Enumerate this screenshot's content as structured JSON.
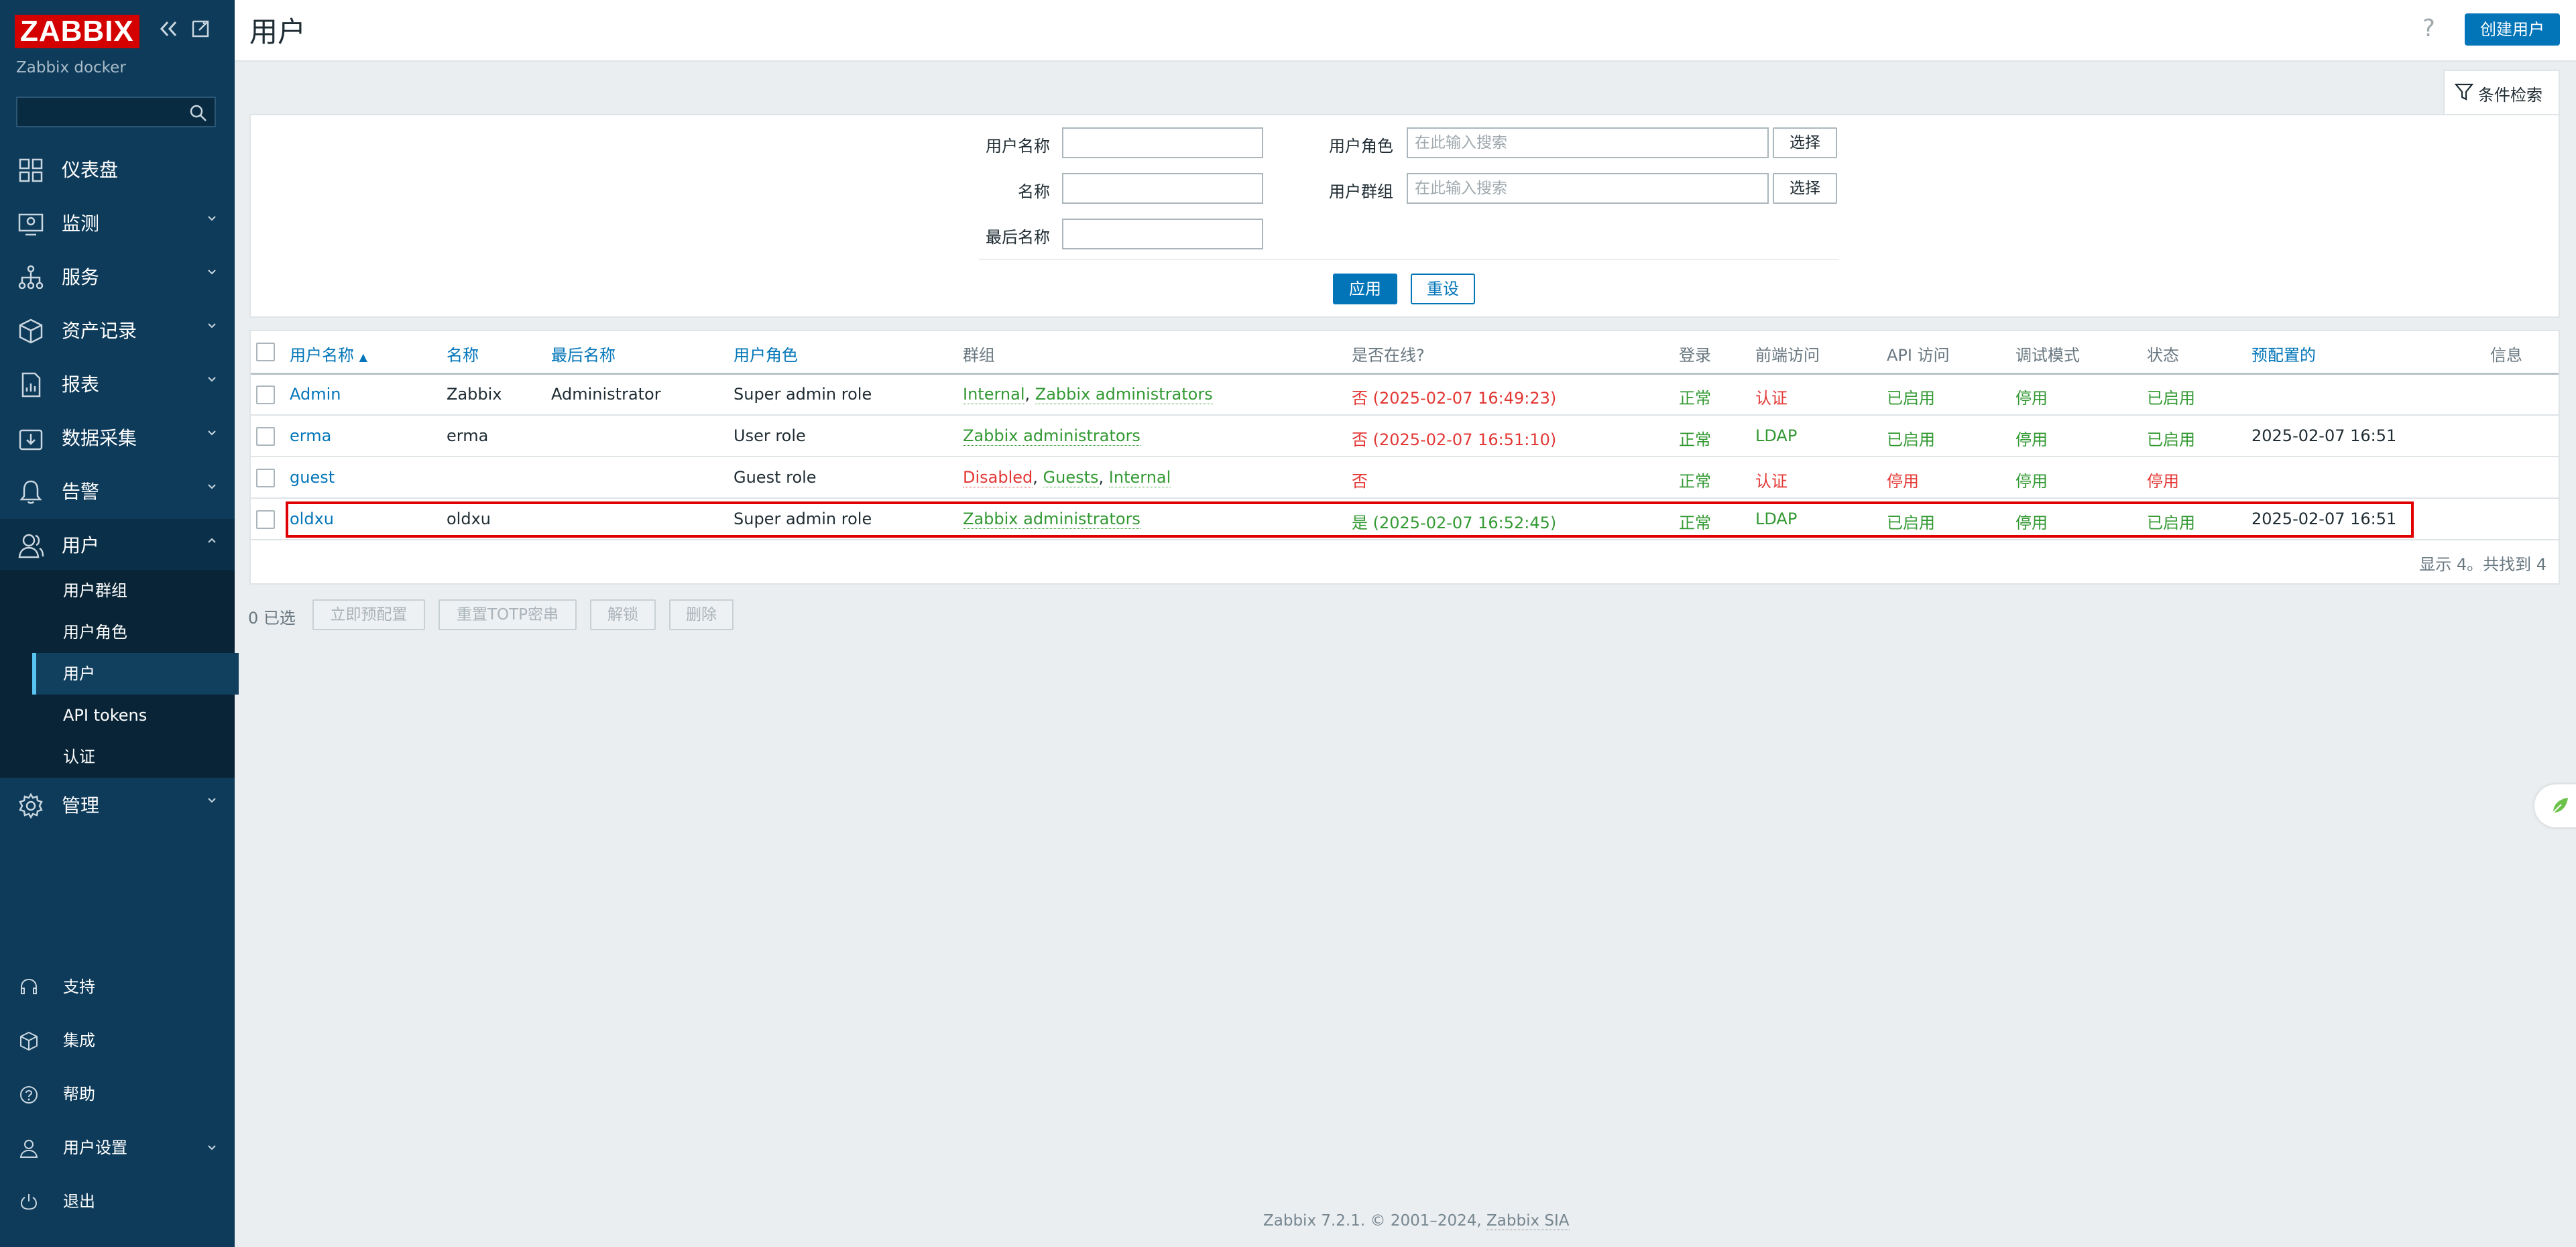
{
  "sidebar": {
    "logo": "ZABBIX",
    "instance": "Zabbix docker",
    "search_placeholder": "",
    "menu": [
      {
        "label": "仪表盘",
        "icon": "dashboard-icon"
      },
      {
        "label": "监测",
        "icon": "monitoring-icon"
      },
      {
        "label": "服务",
        "icon": "services-icon"
      },
      {
        "label": "资产记录",
        "icon": "inventory-icon"
      },
      {
        "label": "报表",
        "icon": "reports-icon"
      },
      {
        "label": "数据采集",
        "icon": "data-collection-icon"
      },
      {
        "label": "告警",
        "icon": "alerts-icon"
      },
      {
        "label": "用户",
        "icon": "users-icon"
      },
      {
        "label": "管理",
        "icon": "administration-icon"
      }
    ],
    "users_submenu": [
      "用户群组",
      "用户角色",
      "用户",
      "API tokens",
      "认证"
    ],
    "bottom": [
      {
        "label": "支持",
        "icon": "support-icon"
      },
      {
        "label": "集成",
        "icon": "integrations-icon"
      },
      {
        "label": "帮助",
        "icon": "help-icon"
      },
      {
        "label": "用户设置",
        "icon": "user-settings-icon"
      },
      {
        "label": "退出",
        "icon": "logout-icon"
      }
    ]
  },
  "header": {
    "title": "用户",
    "help": "?",
    "create_button": "创建用户"
  },
  "filter": {
    "tab_label": "条件检索",
    "username_label": "用户名称",
    "username_value": "",
    "name_label": "名称",
    "name_value": "",
    "surname_label": "最后名称",
    "surname_value": "",
    "role_label": "用户角色",
    "role_placeholder": "在此输入搜索",
    "group_label": "用户群组",
    "group_placeholder": "在此输入搜索",
    "select_label": "选择",
    "apply": "应用",
    "reset": "重设"
  },
  "table": {
    "headers": {
      "username": "用户名称",
      "name": "名称",
      "surname": "最后名称",
      "role": "用户角色",
      "groups": "群组",
      "online": "是否在线?",
      "login": "登录",
      "frontend": "前端访问",
      "api": "API 访问",
      "debug": "调试模式",
      "status": "状态",
      "provisioned": "预配置的",
      "info": "信息"
    },
    "sort_arrow": "▲",
    "rows": [
      {
        "username": "Admin",
        "name": "Zabbix",
        "surname": "Administrator",
        "role": "Super admin role",
        "groups": [
          {
            "t": "Internal",
            "c": "green"
          },
          {
            "t": "Zabbix administrators",
            "c": "green"
          }
        ],
        "online": "否 (2025-02-07 16:49:23)",
        "online_color": "red",
        "login": "正常",
        "frontend": "认证",
        "frontend_color": "red",
        "api": "已启用",
        "api_color": "green",
        "debug": "停用",
        "status": "已启用",
        "status_color": "green",
        "provisioned": ""
      },
      {
        "username": "erma",
        "name": "erma",
        "surname": "",
        "role": "User role",
        "groups": [
          {
            "t": "Zabbix administrators",
            "c": "green"
          }
        ],
        "online": "否 (2025-02-07 16:51:10)",
        "online_color": "red",
        "login": "正常",
        "frontend": "LDAP",
        "frontend_color": "green",
        "api": "已启用",
        "api_color": "green",
        "debug": "停用",
        "status": "已启用",
        "status_color": "green",
        "provisioned": "2025-02-07 16:51"
      },
      {
        "username": "guest",
        "name": "",
        "surname": "",
        "role": "Guest role",
        "groups": [
          {
            "t": "Disabled",
            "c": "red"
          },
          {
            "t": "Guests",
            "c": "green"
          },
          {
            "t": "Internal",
            "c": "green"
          }
        ],
        "online": "否",
        "online_color": "red",
        "login": "正常",
        "frontend": "认证",
        "frontend_color": "red",
        "api": "停用",
        "api_color": "red",
        "debug": "停用",
        "status": "停用",
        "status_color": "red",
        "provisioned": ""
      },
      {
        "username": "oldxu",
        "name": "oldxu",
        "surname": "",
        "role": "Super admin role",
        "groups": [
          {
            "t": "Zabbix administrators",
            "c": "green"
          }
        ],
        "online": "是 (2025-02-07 16:52:45)",
        "online_color": "green",
        "login": "正常",
        "frontend": "LDAP",
        "frontend_color": "green",
        "api": "已启用",
        "api_color": "green",
        "debug": "停用",
        "status": "已启用",
        "status_color": "green",
        "provisioned": "2025-02-07 16:51"
      }
    ],
    "footer": "显示 4。共找到 4"
  },
  "mass_actions": {
    "selected": "0 已选",
    "buttons": [
      "立即预配置",
      "重置TOTP密串",
      "解锁",
      "删除"
    ]
  },
  "copyright": {
    "prefix": "Zabbix 7.2.1. © 2001–2024, ",
    "link": "Zabbix SIA"
  },
  "colors": {
    "sidebar_bg": "#0e3b5a",
    "logo_red": "#d40000",
    "link_blue": "#0275b8",
    "ok_green": "#339933",
    "bad_red": "#e33734",
    "highlight_red": "#e10000"
  }
}
